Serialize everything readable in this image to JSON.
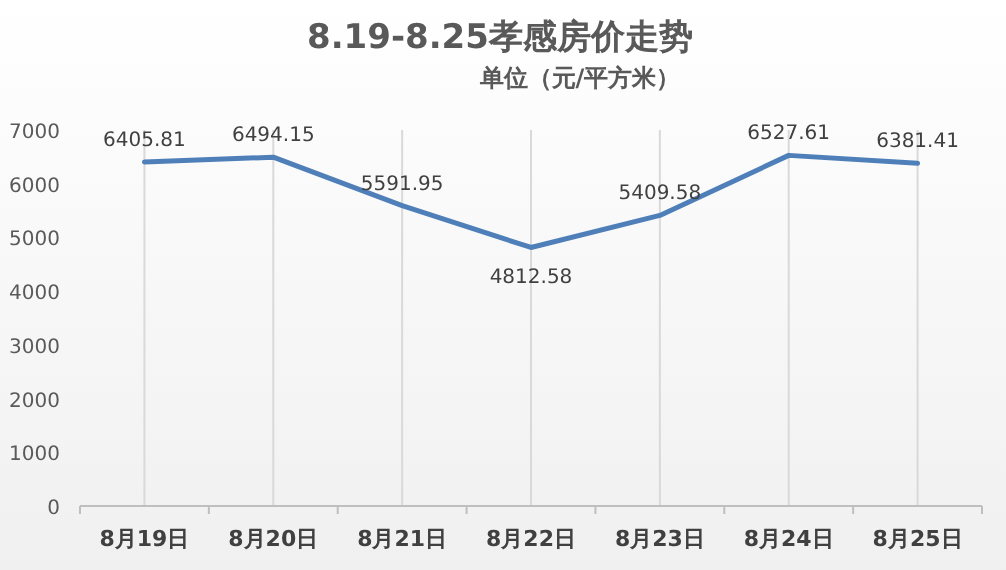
{
  "chart_data": {
    "type": "line",
    "title": "8.19-8.25孝感房价走势",
    "subtitle": "单位（元/平方米）",
    "categories": [
      "8月19日",
      "8月20日",
      "8月21日",
      "8月22日",
      "8月23日",
      "8月24日",
      "8月25日"
    ],
    "series": [
      {
        "color": "#4f7fb8",
        "values": [
          6405.81,
          6494.15,
          5591.95,
          4812.58,
          5409.58,
          6527.61,
          6381.41
        ]
      }
    ],
    "ylim": [
      0,
      7000
    ],
    "yticks": [
      0,
      1000,
      2000,
      3000,
      4000,
      5000,
      6000,
      7000
    ],
    "grid": "x",
    "data_labels": true,
    "marker": "none",
    "line_style": "solid"
  }
}
